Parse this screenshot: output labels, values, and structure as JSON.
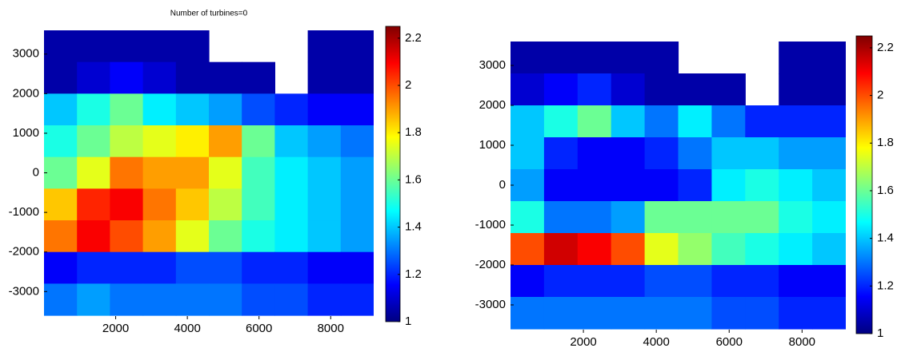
{
  "chart_data": [
    {
      "type": "heatmap",
      "title": "Number of turbines=0",
      "x": [
        460,
        1380,
        2300,
        3220,
        4140,
        5060,
        5980,
        6900,
        7820,
        8740
      ],
      "y": [
        3200,
        2400,
        1600,
        800,
        0,
        -800,
        -1600,
        -2400,
        -3200
      ],
      "z": [
        [
          1.05,
          1.05,
          1.05,
          1.05,
          1.05,
          null,
          null,
          null,
          1.05,
          1.05
        ],
        [
          1.05,
          1.1,
          1.15,
          1.1,
          1.05,
          1.05,
          1.05,
          null,
          1.05,
          1.05
        ],
        [
          1.4,
          1.5,
          1.6,
          1.45,
          1.4,
          1.35,
          1.25,
          1.2,
          1.15,
          1.15
        ],
        [
          1.5,
          1.6,
          1.7,
          1.75,
          1.8,
          1.9,
          1.6,
          1.4,
          1.35,
          1.3
        ],
        [
          1.6,
          1.75,
          1.95,
          1.9,
          1.9,
          1.75,
          1.55,
          1.45,
          1.4,
          1.35
        ],
        [
          1.85,
          2.05,
          2.1,
          1.95,
          1.85,
          1.7,
          1.55,
          1.45,
          1.4,
          1.35
        ],
        [
          1.95,
          2.1,
          2.0,
          1.9,
          1.75,
          1.6,
          1.5,
          1.45,
          1.4,
          1.35
        ],
        [
          1.15,
          1.2,
          1.2,
          1.2,
          1.25,
          1.25,
          1.2,
          1.2,
          1.15,
          1.15
        ],
        [
          1.3,
          1.35,
          1.3,
          1.3,
          1.3,
          1.3,
          1.25,
          1.25,
          1.2,
          1.2
        ]
      ],
      "xlim": [
        0,
        9200
      ],
      "ylim": [
        -3700,
        3600
      ],
      "xticks": [
        2000,
        4000,
        6000,
        8000
      ],
      "yticks": [
        -3000,
        -2000,
        -1000,
        0,
        1000,
        2000,
        3000
      ],
      "clim": [
        1,
        2.25
      ],
      "cticks": [
        1,
        1.2,
        1.4,
        1.6,
        1.8,
        2,
        2.2
      ],
      "colormap": "jet"
    },
    {
      "type": "heatmap",
      "x": [
        460,
        1380,
        2300,
        3220,
        4140,
        5060,
        5980,
        6900,
        7820,
        8740
      ],
      "y": [
        3200,
        2400,
        1600,
        800,
        0,
        -800,
        -1600,
        -2400,
        -3200
      ],
      "z": [
        [
          1.05,
          1.05,
          1.05,
          1.05,
          1.05,
          null,
          null,
          null,
          1.05,
          1.05
        ],
        [
          1.1,
          1.15,
          1.2,
          1.1,
          1.05,
          1.05,
          1.05,
          null,
          1.05,
          1.05
        ],
        [
          1.4,
          1.5,
          1.6,
          1.4,
          1.3,
          1.45,
          1.3,
          1.2,
          1.2,
          1.2
        ],
        [
          1.4,
          1.2,
          1.15,
          1.15,
          1.2,
          1.3,
          1.4,
          1.4,
          1.35,
          1.35
        ],
        [
          1.35,
          1.15,
          1.15,
          1.15,
          1.15,
          1.2,
          1.45,
          1.5,
          1.45,
          1.4
        ],
        [
          1.5,
          1.3,
          1.3,
          1.35,
          1.6,
          1.6,
          1.6,
          1.6,
          1.5,
          1.45
        ],
        [
          2.0,
          2.15,
          2.1,
          2.0,
          1.75,
          1.65,
          1.55,
          1.5,
          1.45,
          1.4
        ],
        [
          1.15,
          1.2,
          1.2,
          1.2,
          1.25,
          1.25,
          1.2,
          1.2,
          1.15,
          1.15
        ],
        [
          1.3,
          1.3,
          1.3,
          1.3,
          1.3,
          1.3,
          1.25,
          1.25,
          1.2,
          1.2
        ]
      ],
      "xlim": [
        0,
        9200
      ],
      "ylim": [
        -3700,
        3600
      ],
      "xticks": [
        2000,
        4000,
        6000,
        8000
      ],
      "yticks": [
        -3000,
        -2000,
        -1000,
        0,
        1000,
        2000,
        3000
      ],
      "clim": [
        1,
        2.25
      ],
      "cticks": [
        1,
        1.2,
        1.4,
        1.6,
        1.8,
        2,
        2.2
      ],
      "colormap": "jet"
    }
  ]
}
